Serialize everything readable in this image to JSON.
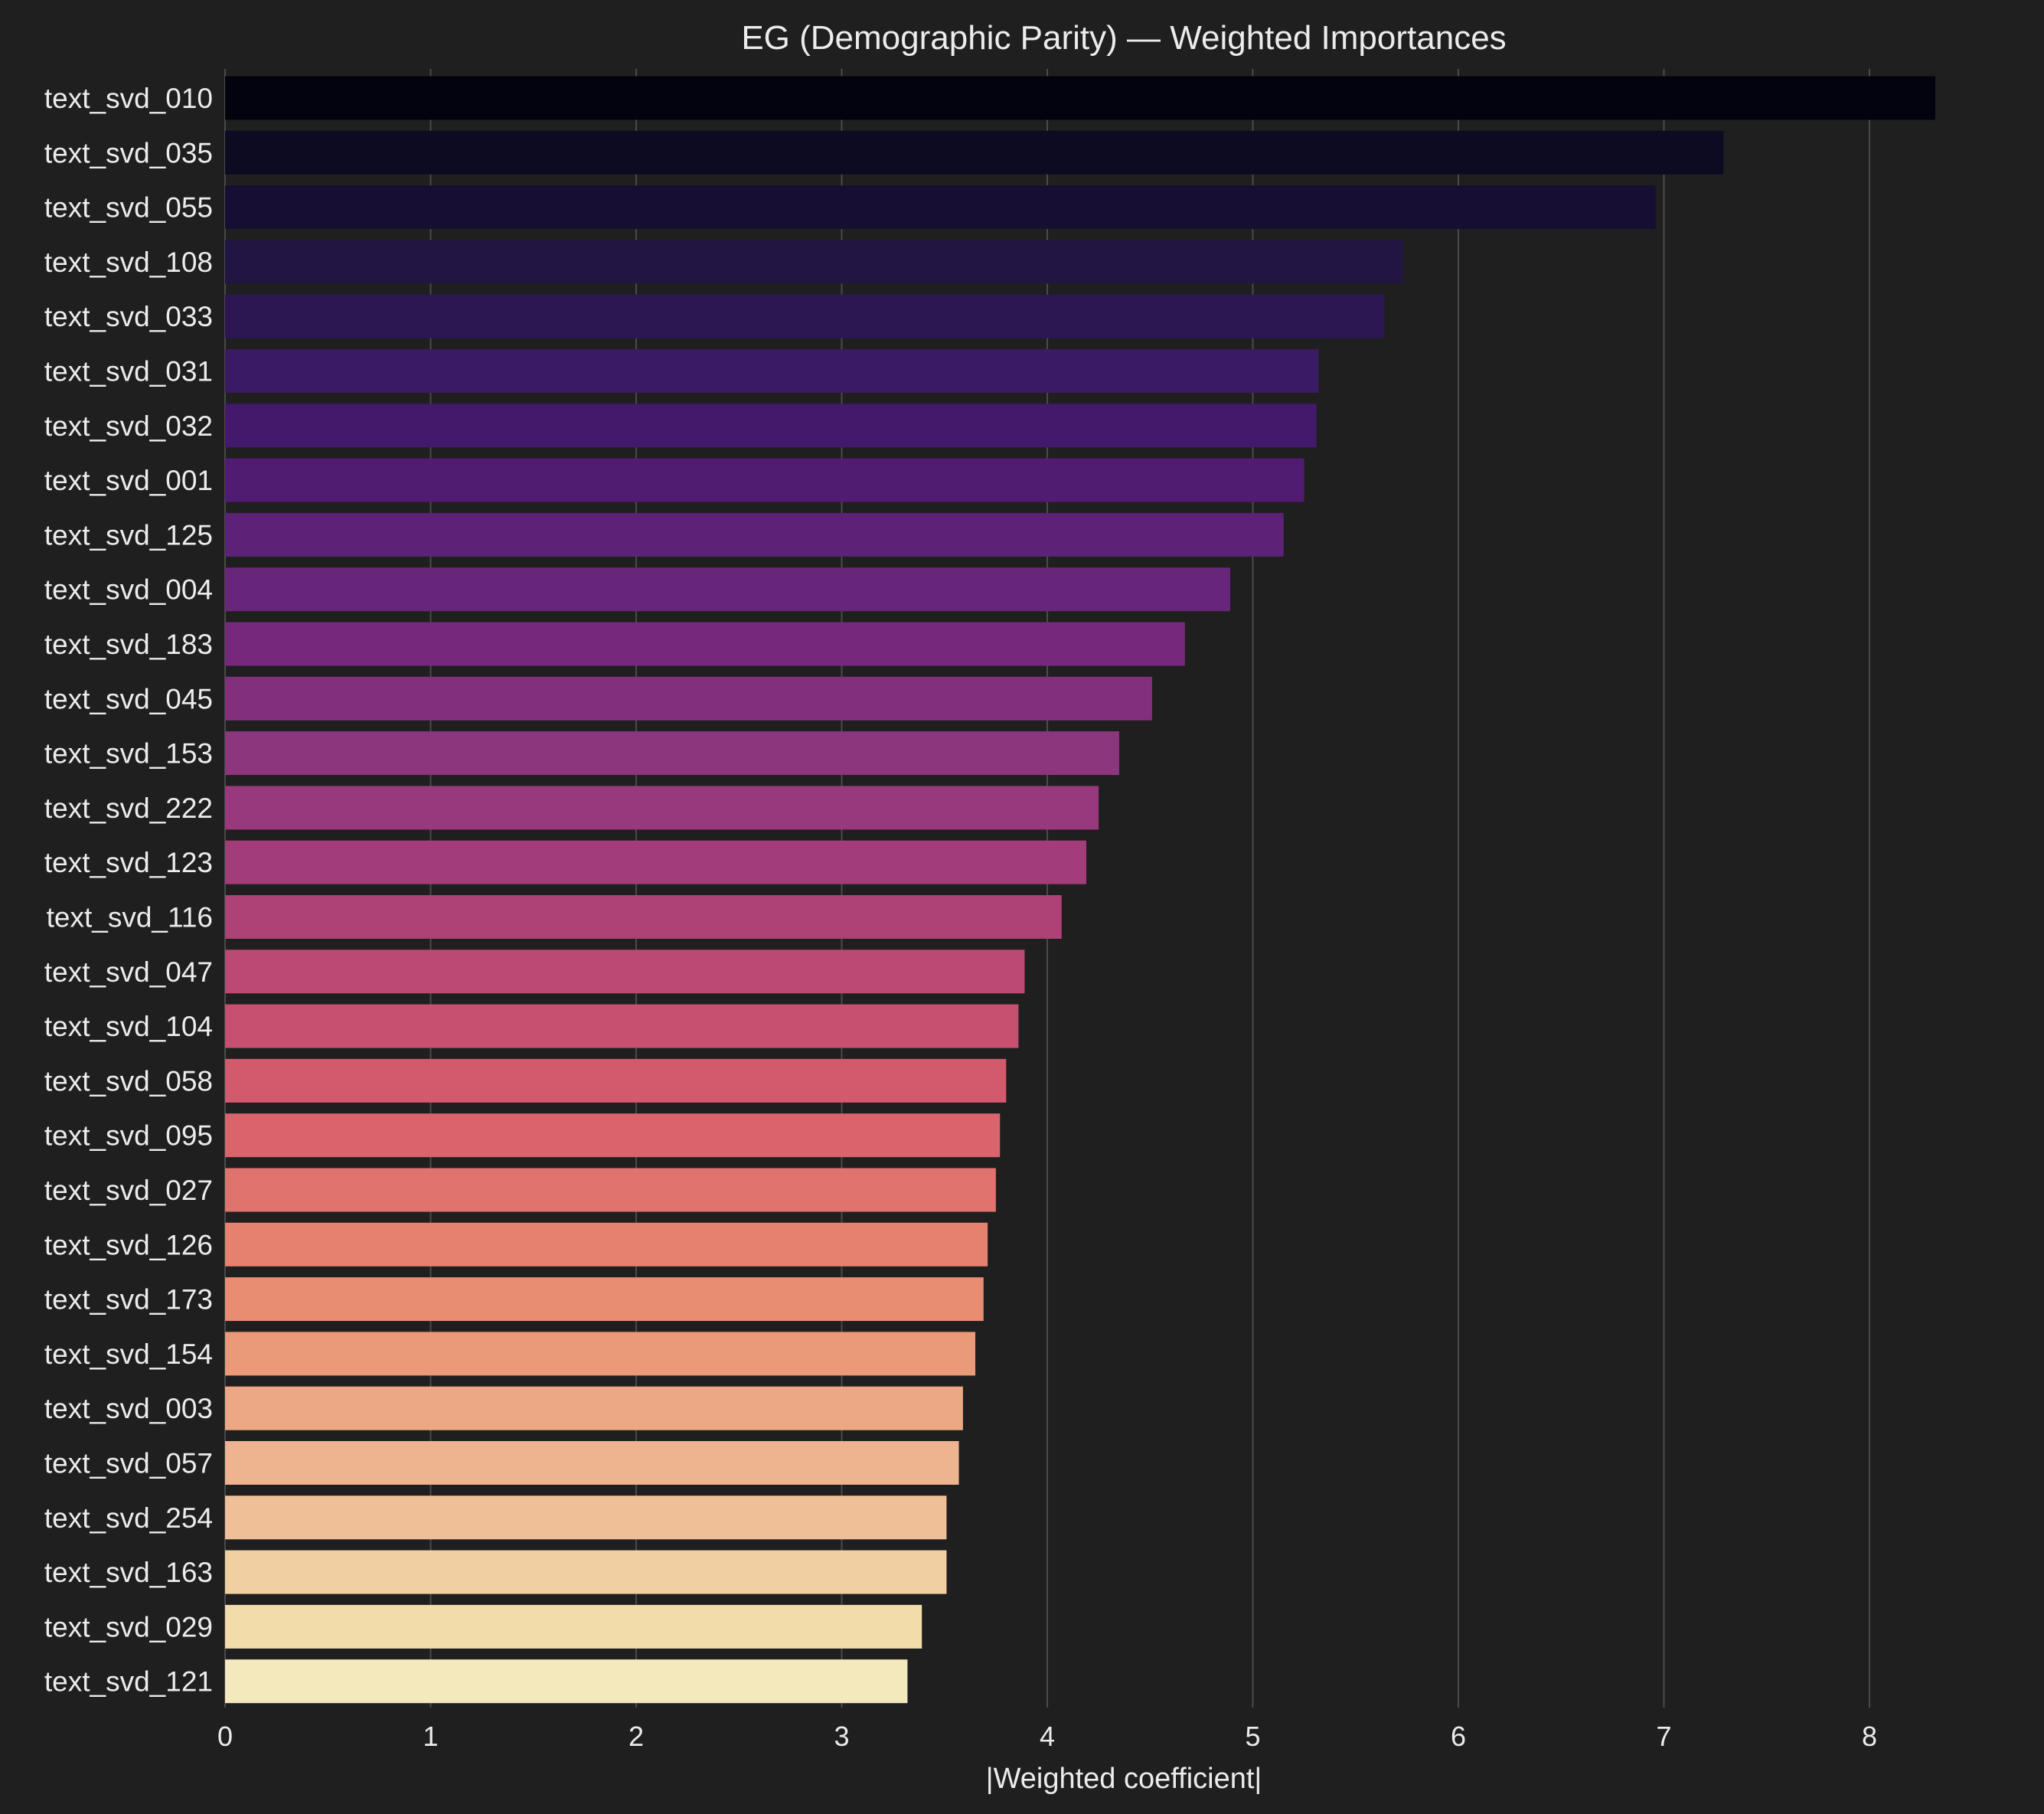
{
  "chart_data": {
    "type": "bar",
    "orientation": "horizontal",
    "title": "EG (Demographic Parity) — Weighted Importances",
    "xlabel": "|Weighted coefficient|",
    "ylabel": "",
    "xlim": [
      0,
      8.6
    ],
    "xticks": [
      0,
      1,
      2,
      3,
      4,
      5,
      6,
      7,
      8
    ],
    "grid": "vertical",
    "colormap": "magma (dark to light, top to bottom)",
    "categories": [
      "text_svd_010",
      "text_svd_035",
      "text_svd_055",
      "text_svd_108",
      "text_svd_033",
      "text_svd_031",
      "text_svd_032",
      "text_svd_001",
      "text_svd_125",
      "text_svd_004",
      "text_svd_183",
      "text_svd_045",
      "text_svd_153",
      "text_svd_222",
      "text_svd_123",
      "text_svd_116",
      "text_svd_047",
      "text_svd_104",
      "text_svd_058",
      "text_svd_095",
      "text_svd_027",
      "text_svd_126",
      "text_svd_173",
      "text_svd_154",
      "text_svd_003",
      "text_svd_057",
      "text_svd_254",
      "text_svd_163",
      "text_svd_029",
      "text_svd_121"
    ],
    "values": [
      8.32,
      7.29,
      6.96,
      5.73,
      5.64,
      5.32,
      5.31,
      5.25,
      5.15,
      4.89,
      4.67,
      4.51,
      4.35,
      4.25,
      4.19,
      4.07,
      3.89,
      3.86,
      3.8,
      3.77,
      3.75,
      3.71,
      3.69,
      3.65,
      3.59,
      3.57,
      3.51,
      3.51,
      3.39,
      3.32
    ],
    "colors": [
      "#03030f",
      "#0d0b22",
      "#160f33",
      "#221543",
      "#2c1753",
      "#3a1a62",
      "#44196b",
      "#4f1c72",
      "#5c2278",
      "#68267b",
      "#74297c",
      "#82307d",
      "#8c367d",
      "#97397c",
      "#a33d7a",
      "#ae4176",
      "#bb4973",
      "#c74f6f",
      "#d25a6c",
      "#da646b",
      "#e1736f",
      "#e6816f",
      "#e88d71",
      "#eb9a79",
      "#eca785",
      "#edb48f",
      "#efc098",
      "#f0cfa2",
      "#f2dcaa",
      "#f4e9bd"
    ]
  },
  "theme": {
    "background": "#1f1f1f",
    "text": "#ececec",
    "grid": "#4a4a4a"
  }
}
